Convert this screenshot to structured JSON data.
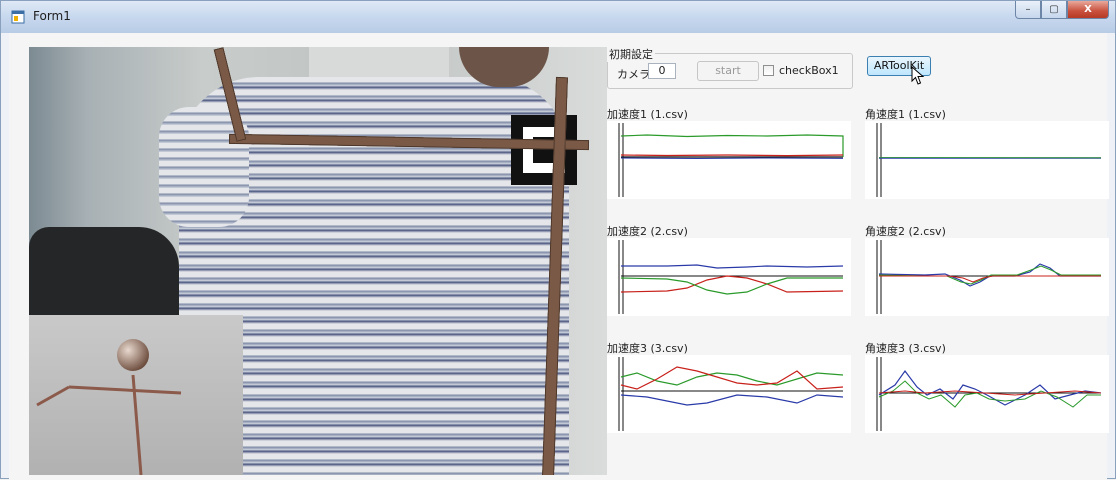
{
  "window": {
    "title": "Form1",
    "buttons": {
      "minimize": "–",
      "maximize": "▢",
      "close": "X"
    }
  },
  "init_group": {
    "title": "初期設定",
    "camera_label": "カメラ",
    "camera_value": "0",
    "start_label": "start",
    "checkbox_label": "checkBox1",
    "checkbox_checked": false
  },
  "artoolkit_button": "ARToolKit",
  "charts": [
    {
      "title": "加速度1 (1.csv)"
    },
    {
      "title": "角速度1 (1.csv)"
    },
    {
      "title": "加速度2 (2.csv)"
    },
    {
      "title": "角速度2 (2.csv)"
    },
    {
      "title": "加速度3 (3.csv)"
    },
    {
      "title": "角速度3 (3.csv)"
    }
  ],
  "colors": {
    "red": "#c8201a",
    "green": "#2a9a2a",
    "blue": "#2a3aa8",
    "black": "#111111",
    "accent": "#3c7fb1"
  }
}
